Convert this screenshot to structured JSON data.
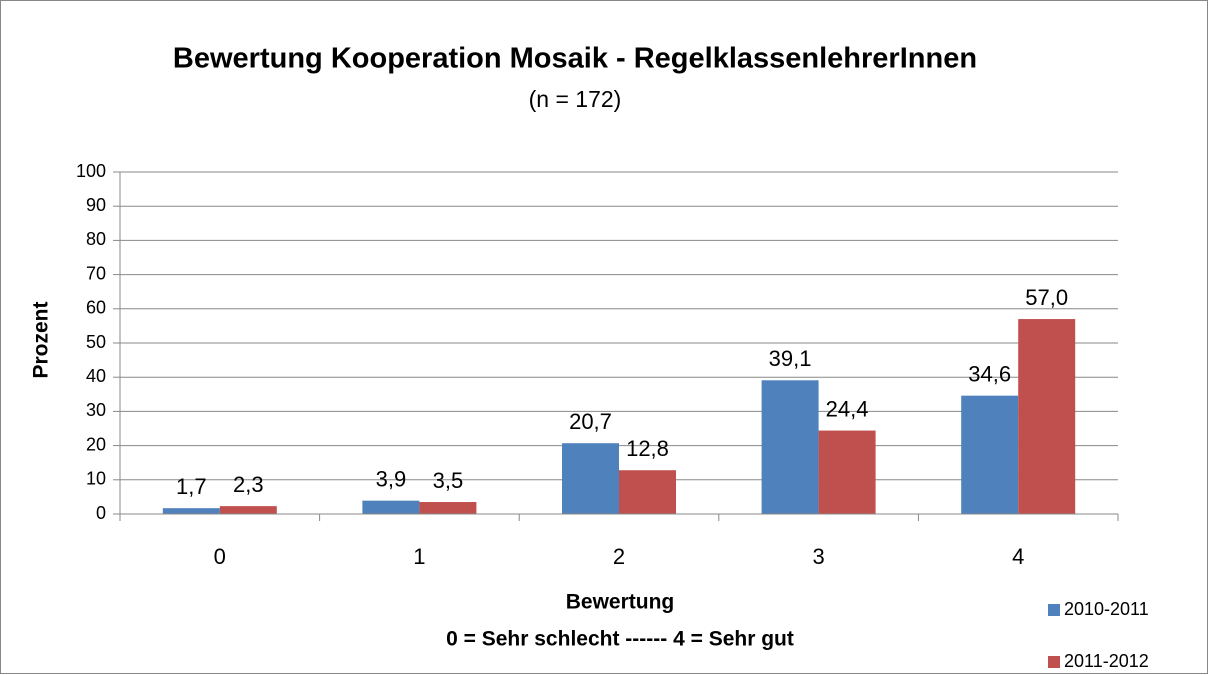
{
  "chart_data": {
    "type": "bar",
    "title": "Bewertung Kooperation Mosaik - RegelklassenlehrerInnen",
    "subtitle": "(n = 172)",
    "ylabel": "Prozent",
    "xlabel": [
      "Bewertung",
      "0 = Sehr schlecht ------ 4 = Sehr gut"
    ],
    "categories": [
      "0",
      "1",
      "2",
      "3",
      "4"
    ],
    "series": [
      {
        "name": "2010-2011",
        "color": "#4f81bd",
        "values": [
          1.7,
          3.9,
          20.7,
          39.1,
          34.6
        ],
        "value_labels": [
          "1,7",
          "3,9",
          "20,7",
          "39,1",
          "34,6"
        ]
      },
      {
        "name": "2011-2012",
        "color": "#c0504d",
        "values": [
          2.3,
          3.5,
          12.8,
          24.4,
          57.0
        ],
        "value_labels": [
          "2,3",
          "3,5",
          "12,8",
          "24,4",
          "57,0"
        ]
      }
    ],
    "ylim": [
      0,
      100
    ],
    "yticks": [
      0,
      10,
      20,
      30,
      40,
      50,
      60,
      70,
      80,
      90,
      100
    ],
    "grid": true,
    "legend": "bottom-right"
  }
}
